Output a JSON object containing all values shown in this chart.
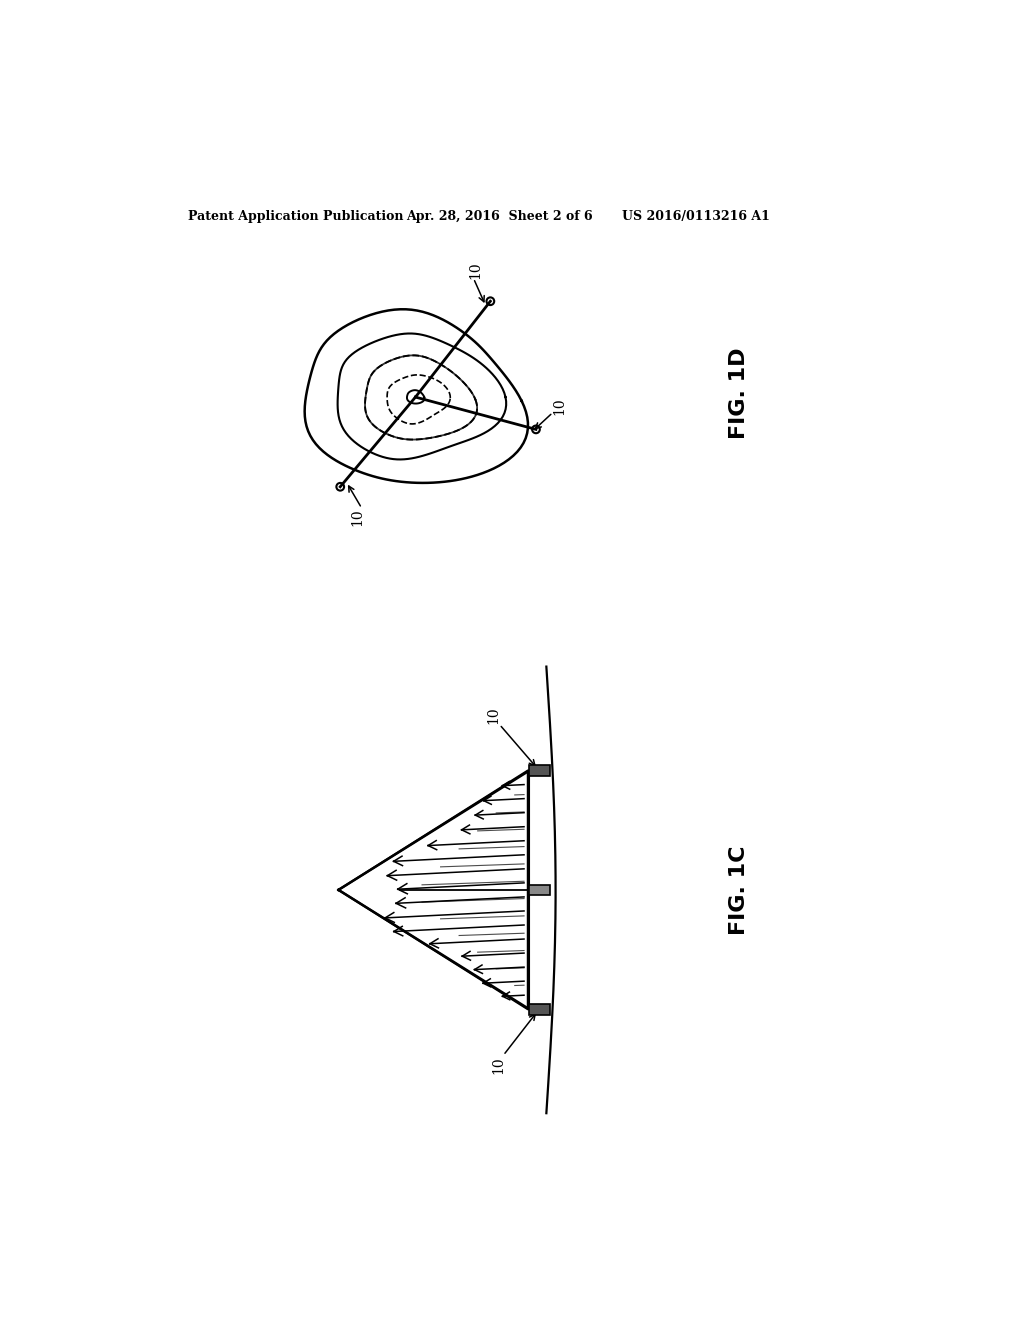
{
  "bg_color": "#ffffff",
  "header_text1": "Patent Application Publication",
  "header_text2": "Apr. 28, 2016  Sheet 2 of 6",
  "header_text3": "US 2016/0113216 A1",
  "fig1d_label": "FIG. 1D",
  "fig1c_label": "FIG. 1C",
  "label_10": "10",
  "line_color": "#000000"
}
